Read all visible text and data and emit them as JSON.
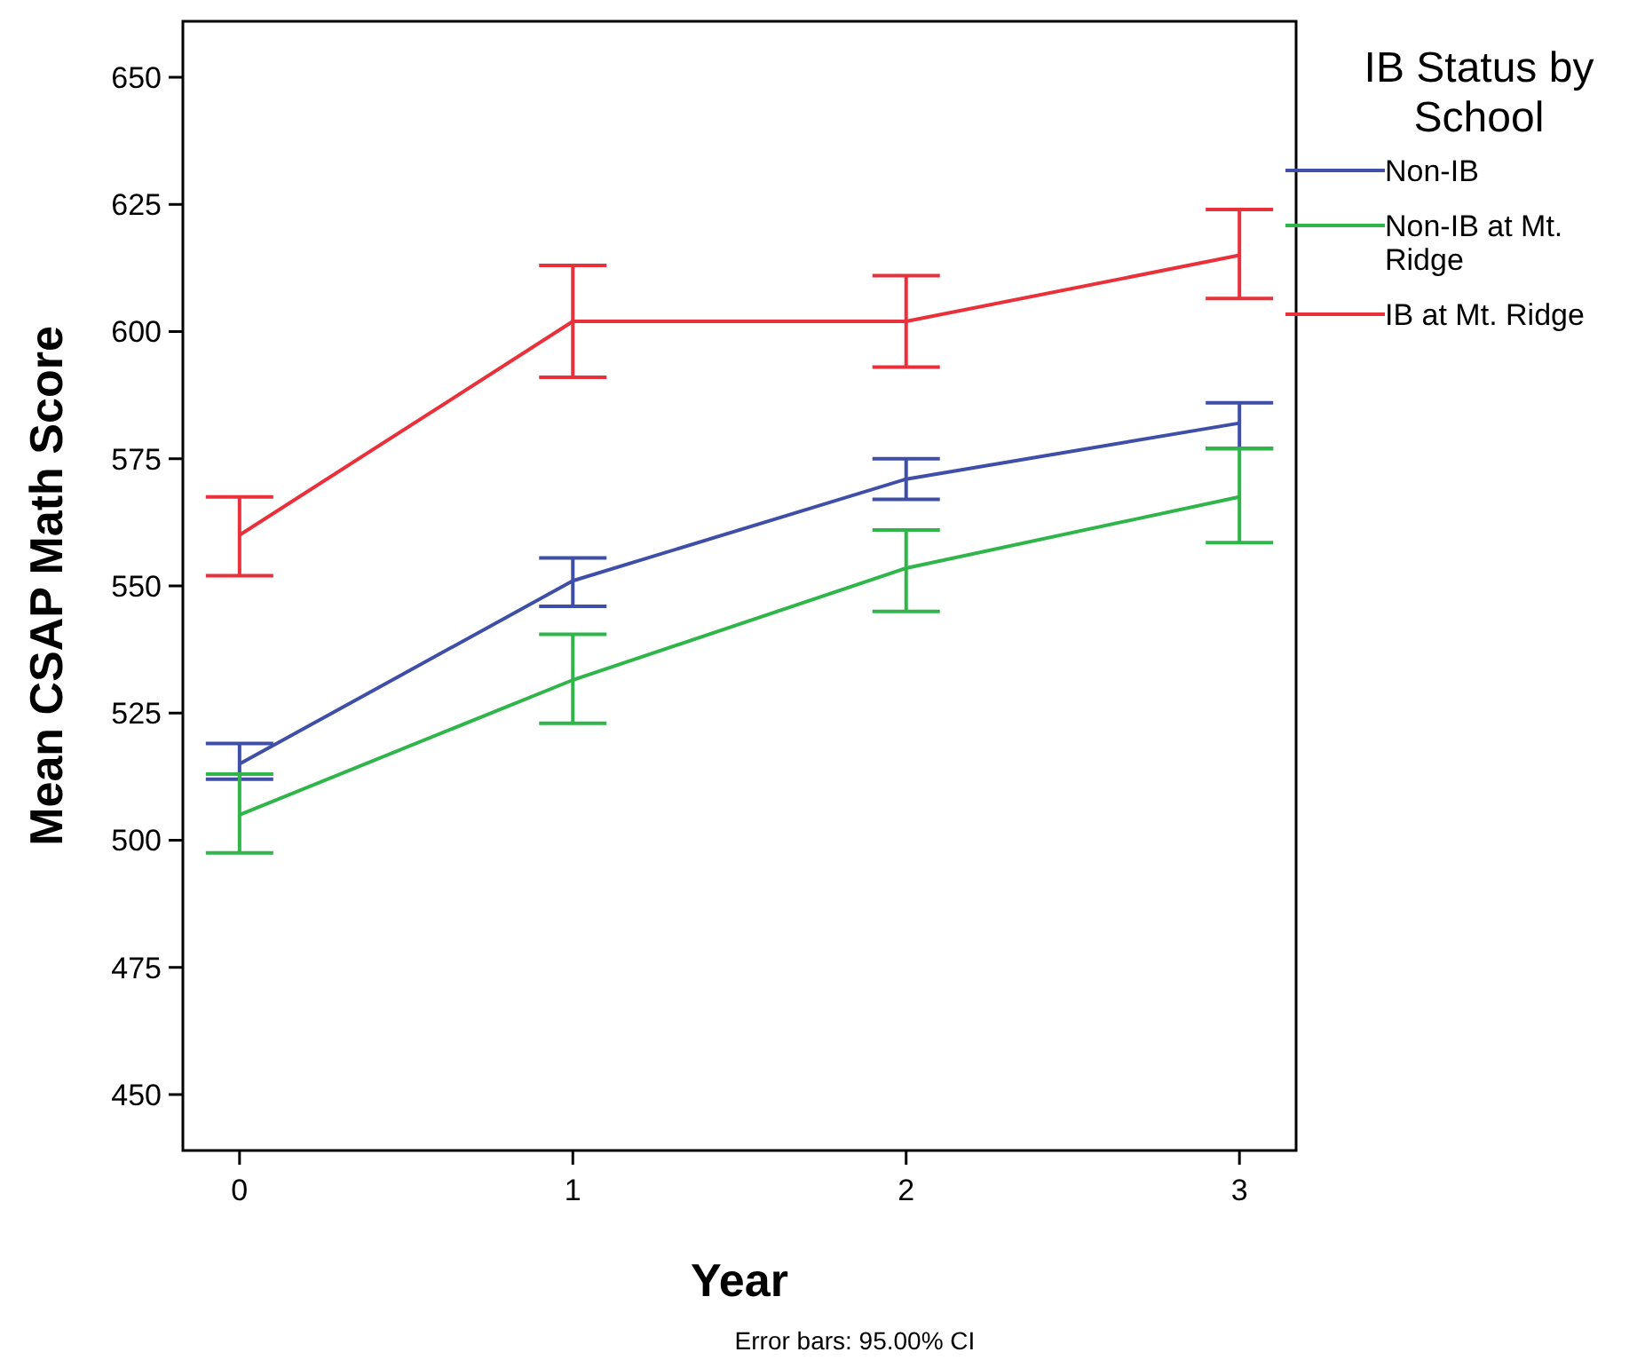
{
  "chart_data": {
    "type": "line",
    "xlabel": "Year",
    "ylabel": "Mean CSAP Math Score",
    "legend_title": "IB Status by School",
    "annotations": [
      "Error bars: 95.00% CI"
    ],
    "x": [
      0,
      1,
      2,
      3
    ],
    "xlim": [
      -0.17,
      3.17
    ],
    "xticks": [
      0,
      1,
      2,
      3
    ],
    "ylim": [
      439,
      661
    ],
    "yticks": [
      450,
      475,
      500,
      525,
      550,
      575,
      600,
      625,
      650
    ],
    "grid": false,
    "legend": "right",
    "marker": "none",
    "line_style": "solid",
    "series": [
      {
        "name": "Non-IB",
        "color": "#3f4fa8",
        "values": [
          515,
          551,
          571,
          582
        ],
        "errors": [
          [
            512,
            519
          ],
          [
            546,
            555.5
          ],
          [
            567,
            575
          ],
          [
            577,
            586
          ]
        ]
      },
      {
        "name": "Non-IB at Mt. Ridge",
        "color": "#2fb54a",
        "values": [
          505,
          531.5,
          553.5,
          567.5
        ],
        "errors": [
          [
            497.5,
            513
          ],
          [
            523,
            540.5
          ],
          [
            545,
            561
          ],
          [
            558.5,
            577
          ]
        ]
      },
      {
        "name": "IB at Mt. Ridge",
        "color": "#e8313a",
        "values": [
          560,
          602,
          602,
          615
        ],
        "errors": [
          [
            552,
            567.5
          ],
          [
            591,
            613
          ],
          [
            593,
            611
          ],
          [
            606.5,
            624
          ]
        ]
      }
    ]
  }
}
